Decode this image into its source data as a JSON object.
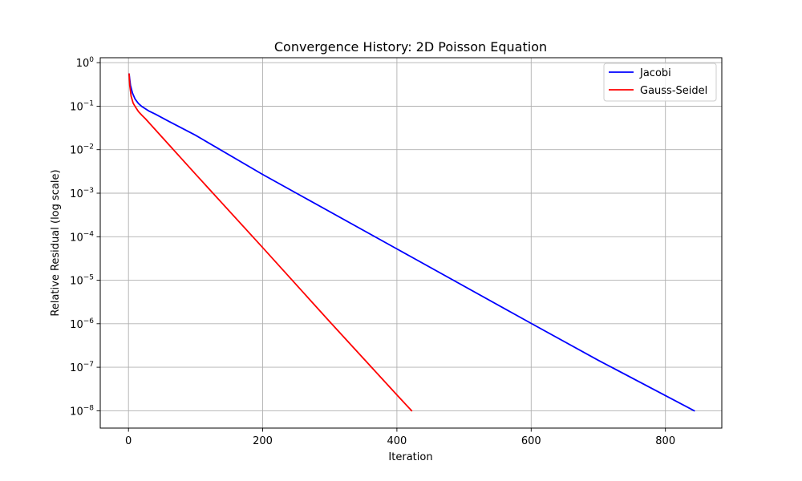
{
  "chart_data": {
    "type": "line",
    "title": "Convergence History: 2D Poisson Equation",
    "xlabel": "Iteration",
    "ylabel": "Relative Residual (log scale)",
    "xscale": "linear",
    "yscale": "log",
    "xlim": [
      -42,
      884
    ],
    "ylim": [
      4e-09,
      1.3
    ],
    "xticks": [
      0,
      200,
      400,
      600,
      800
    ],
    "xtick_labels": [
      "0",
      "200",
      "400",
      "600",
      "800"
    ],
    "yticks": [
      1e-08,
      1e-07,
      1e-06,
      1e-05,
      0.0001,
      0.001,
      0.01,
      0.1,
      1
    ],
    "ytick_labels": [
      {
        "base": "10",
        "exp": "−8"
      },
      {
        "base": "10",
        "exp": "−7"
      },
      {
        "base": "10",
        "exp": "−6"
      },
      {
        "base": "10",
        "exp": "−5"
      },
      {
        "base": "10",
        "exp": "−4"
      },
      {
        "base": "10",
        "exp": "−3"
      },
      {
        "base": "10",
        "exp": "−2"
      },
      {
        "base": "10",
        "exp": "−1"
      },
      {
        "base": "10",
        "exp": "0"
      }
    ],
    "grid": true,
    "legend_position": "upper-right",
    "series": [
      {
        "name": "Jacobi",
        "color": "#0000ff",
        "points": [
          [
            1,
            0.55
          ],
          [
            3,
            0.3
          ],
          [
            6,
            0.2
          ],
          [
            10,
            0.145
          ],
          [
            15,
            0.115
          ],
          [
            20,
            0.098
          ],
          [
            30,
            0.078
          ],
          [
            40,
            0.066
          ],
          [
            60,
            0.045
          ],
          [
            100,
            0.0215
          ],
          [
            200,
            0.0027
          ],
          [
            400,
            5.25e-05
          ],
          [
            600,
            1.02e-06
          ],
          [
            700,
            1.45e-07
          ],
          [
            843,
            1e-08
          ]
        ]
      },
      {
        "name": "Gauss-Seidel",
        "color": "#ff0000",
        "points": [
          [
            1,
            0.55
          ],
          [
            2,
            0.3
          ],
          [
            4,
            0.17
          ],
          [
            7,
            0.118
          ],
          [
            10,
            0.098
          ],
          [
            15,
            0.075
          ],
          [
            20,
            0.062
          ],
          [
            25,
            0.052
          ],
          [
            50,
            0.0195
          ],
          [
            100,
            0.00275
          ],
          [
            200,
            5.65e-05
          ],
          [
            300,
            1.11e-06
          ],
          [
            400,
            2.32e-08
          ],
          [
            422,
            1e-08
          ]
        ]
      }
    ]
  }
}
